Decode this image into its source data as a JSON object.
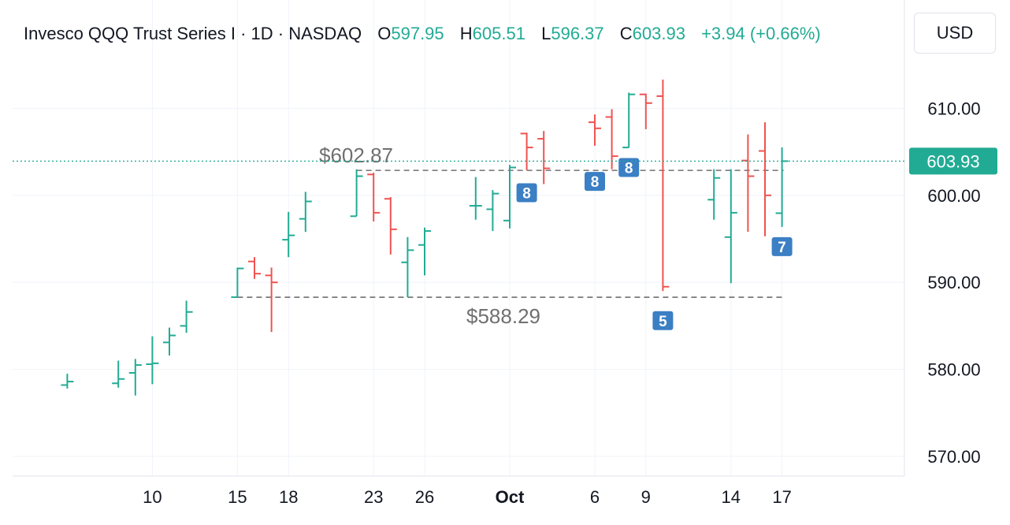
{
  "legend": {
    "title": "Invesco QQQ Trust Series I · 1D · NASDAQ",
    "o_label": "O",
    "o_value": "597.95",
    "h_label": "H",
    "h_value": "605.51",
    "l_label": "L",
    "l_value": "596.37",
    "c_label": "C",
    "c_value": "603.93",
    "change": "+3.94 (+0.66%)"
  },
  "currency_label": "USD",
  "colors": {
    "up": "#22ab94",
    "down": "#ef5350",
    "grid": "#f0f3fa",
    "dash": "#555555",
    "marker": "#3b7fc4",
    "price_tag": "#22ab94"
  },
  "chart_data": {
    "type": "ohlc",
    "ylim": [
      568,
      614
    ],
    "yticks": [
      "570.00",
      "580.00",
      "590.00",
      "600.00",
      "610.00"
    ],
    "xticks": [
      {
        "label": "10",
        "date": "2025-09-10"
      },
      {
        "label": "15",
        "date": "2025-09-15"
      },
      {
        "label": "18",
        "date": "2025-09-18"
      },
      {
        "label": "23",
        "date": "2025-09-23"
      },
      {
        "label": "26",
        "date": "2025-09-26"
      },
      {
        "label": "Oct",
        "date": "2025-10-01",
        "bold": true
      },
      {
        "label": "6",
        "date": "2025-10-06"
      },
      {
        "label": "9",
        "date": "2025-10-09"
      },
      {
        "label": "14",
        "date": "2025-10-14"
      },
      {
        "label": "17",
        "date": "2025-10-17"
      }
    ],
    "bars": [
      {
        "date": "2025-09-05",
        "o": 578.2,
        "h": 579.5,
        "l": 577.8,
        "c": 578.6
      },
      {
        "date": "2025-09-08",
        "o": 578.4,
        "h": 581.0,
        "l": 577.9,
        "c": 578.9
      },
      {
        "date": "2025-09-09",
        "o": 579.6,
        "h": 581.2,
        "l": 577.0,
        "c": 580.5
      },
      {
        "date": "2025-09-10",
        "o": 580.6,
        "h": 583.8,
        "l": 578.3,
        "c": 580.7
      },
      {
        "date": "2025-09-11",
        "o": 583.1,
        "h": 584.8,
        "l": 581.6,
        "c": 583.9
      },
      {
        "date": "2025-09-12",
        "o": 585.0,
        "h": 587.9,
        "l": 584.2,
        "c": 586.6
      },
      {
        "date": "2025-09-15",
        "o": 588.3,
        "h": 591.7,
        "l": 588.3,
        "c": 591.6
      },
      {
        "date": "2025-09-16",
        "o": 592.4,
        "h": 592.9,
        "l": 590.4,
        "c": 591.0
      },
      {
        "date": "2025-09-17",
        "o": 590.8,
        "h": 591.7,
        "l": 584.3,
        "c": 590.0
      },
      {
        "date": "2025-09-18",
        "o": 594.9,
        "h": 598.1,
        "l": 592.9,
        "c": 595.4
      },
      {
        "date": "2025-09-19",
        "o": 597.3,
        "h": 600.4,
        "l": 595.8,
        "c": 599.3
      },
      {
        "date": "2025-09-22",
        "o": 597.6,
        "h": 603.0,
        "l": 597.6,
        "c": 602.2
      },
      {
        "date": "2025-09-23",
        "o": 602.4,
        "h": 602.6,
        "l": 597.0,
        "c": 598.0
      },
      {
        "date": "2025-09-24",
        "o": 599.6,
        "h": 599.8,
        "l": 593.2,
        "c": 596.1
      },
      {
        "date": "2025-09-25",
        "o": 592.3,
        "h": 595.2,
        "l": 588.3,
        "c": 593.7
      },
      {
        "date": "2025-09-26",
        "o": 594.3,
        "h": 596.3,
        "l": 590.8,
        "c": 595.9
      },
      {
        "date": "2025-09-29",
        "o": 598.8,
        "h": 602.1,
        "l": 597.2,
        "c": 598.8
      },
      {
        "date": "2025-09-30",
        "o": 598.4,
        "h": 600.6,
        "l": 595.9,
        "c": 600.2
      },
      {
        "date": "2025-10-01",
        "o": 597.1,
        "h": 603.5,
        "l": 596.2,
        "c": 603.2
      },
      {
        "date": "2025-10-02",
        "o": 607.1,
        "h": 607.2,
        "l": 602.9,
        "c": 605.5
      },
      {
        "date": "2025-10-03",
        "o": 606.5,
        "h": 607.4,
        "l": 601.3,
        "c": 603.1
      },
      {
        "date": "2025-10-06",
        "o": 608.4,
        "h": 609.3,
        "l": 605.7,
        "c": 607.7
      },
      {
        "date": "2025-10-07",
        "o": 609.0,
        "h": 609.9,
        "l": 603.0,
        "c": 604.5
      },
      {
        "date": "2025-10-08",
        "o": 605.5,
        "h": 611.8,
        "l": 605.5,
        "c": 611.6
      },
      {
        "date": "2025-10-09",
        "o": 611.6,
        "h": 611.7,
        "l": 607.6,
        "c": 610.6
      },
      {
        "date": "2025-10-10",
        "o": 611.4,
        "h": 613.3,
        "l": 589.0,
        "c": 589.5
      },
      {
        "date": "2025-10-13",
        "o": 599.5,
        "h": 603.0,
        "l": 597.2,
        "c": 602.0
      },
      {
        "date": "2025-10-14",
        "o": 595.2,
        "h": 603.0,
        "l": 589.9,
        "c": 598.0
      },
      {
        "date": "2025-10-15",
        "o": 604.0,
        "h": 607.0,
        "l": 595.8,
        "c": 602.2
      },
      {
        "date": "2025-10-16",
        "o": 605.1,
        "h": 608.4,
        "l": 595.3,
        "c": 600.0
      },
      {
        "date": "2025-10-17",
        "o": 597.95,
        "h": 605.51,
        "l": 596.37,
        "c": 603.93
      }
    ],
    "levels": [
      {
        "price": 602.87,
        "label": "$602.87",
        "from": "2025-09-22",
        "to": "2025-10-17"
      },
      {
        "price": 588.29,
        "label": "$588.29",
        "from": "2025-09-15",
        "to": "2025-10-17"
      }
    ],
    "markers": [
      {
        "date": "2025-10-02",
        "price": 600.3,
        "label": "8"
      },
      {
        "date": "2025-10-06",
        "price": 601.6,
        "label": "8"
      },
      {
        "date": "2025-10-08",
        "price": 603.2,
        "label": "8"
      },
      {
        "date": "2025-10-10",
        "price": 585.6,
        "label": "5"
      },
      {
        "date": "2025-10-17",
        "price": 594.1,
        "label": "7"
      }
    ],
    "last_price": 603.93,
    "last_price_label": "603.93"
  }
}
